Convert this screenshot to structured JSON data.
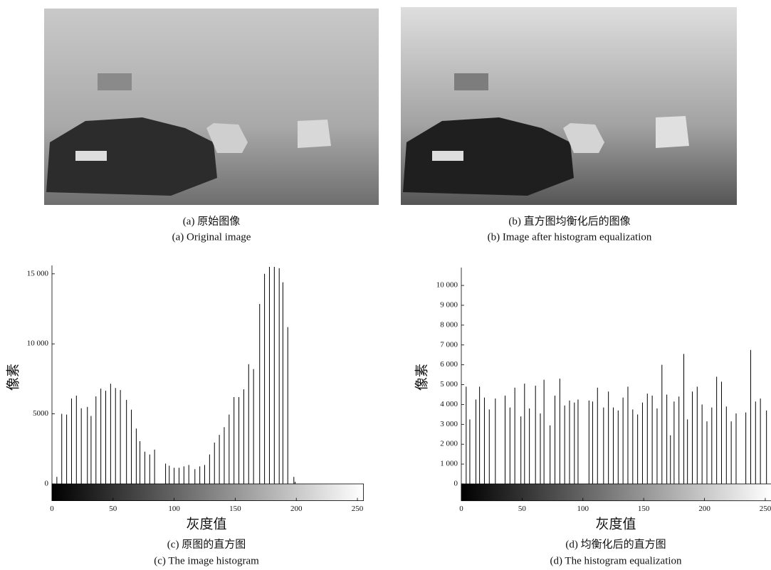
{
  "images": [
    {
      "caption_cn": "(a) 原始图像",
      "caption_en": "(a) Original image"
    },
    {
      "caption_cn": "(b) 直方图均衡化后的图像",
      "caption_en": "(b) Image after histogram equalization"
    }
  ],
  "chart_data": [
    {
      "type": "stem",
      "xlabel": "灰度值",
      "ylabel": "像素",
      "caption_cn": "(c) 原图的直方图",
      "caption_en": "(c) The image histogram",
      "color": "#000000",
      "colorbar": true,
      "x": [
        4,
        8,
        12,
        16,
        20,
        24,
        29,
        32,
        36,
        40,
        44,
        48,
        52,
        56,
        61,
        65,
        69,
        72,
        76,
        80,
        84,
        93,
        96,
        100,
        104,
        108,
        112,
        117,
        121,
        125,
        129,
        133,
        137,
        141,
        145,
        149,
        153,
        157,
        161,
        165,
        170,
        174,
        178,
        182,
        186,
        189,
        193,
        198,
        199
      ],
      "values": [
        500,
        5000,
        4950,
        6100,
        6300,
        5400,
        5500,
        4850,
        6250,
        6800,
        6650,
        7150,
        6850,
        6700,
        6000,
        5300,
        3950,
        3050,
        2300,
        2100,
        2450,
        1450,
        1300,
        1150,
        1150,
        1250,
        1350,
        1050,
        1250,
        1350,
        2100,
        2950,
        3500,
        4050,
        4950,
        6200,
        6200,
        6750,
        8550,
        8200,
        12850,
        15000,
        15500,
        15500,
        15400,
        14400,
        11200,
        500,
        150
      ],
      "xlim": [
        0,
        255
      ],
      "ylim": [
        -1200,
        15600
      ],
      "xticks": [
        0,
        50,
        100,
        150,
        200,
        250
      ],
      "yticks": [
        0,
        5000,
        {
          "value": 10000,
          "label": "10 000"
        },
        {
          "value": 15000,
          "label": "15 000"
        }
      ]
    },
    {
      "type": "stem",
      "xlabel": "灰度值",
      "ylabel": "像素",
      "caption_cn": "(d) 均衡化后的直方图",
      "caption_en": "(d) The histogram equalization",
      "color": "#000000",
      "colorbar": true,
      "x": [
        4,
        7,
        12,
        15,
        19,
        23,
        28,
        36,
        40,
        44,
        49,
        52,
        56,
        61,
        65,
        68,
        73,
        77,
        81,
        85,
        89,
        93,
        96,
        105,
        108,
        112,
        117,
        121,
        125,
        129,
        133,
        137,
        141,
        145,
        149,
        153,
        157,
        161,
        165,
        169,
        172,
        175,
        179,
        183,
        186,
        190,
        194,
        198,
        202,
        206,
        210,
        214,
        218,
        222,
        226,
        234,
        238,
        242,
        246,
        251
      ],
      "values": [
        4900,
        3250,
        4250,
        4900,
        4350,
        3750,
        4300,
        4450,
        3850,
        4850,
        3400,
        5050,
        3800,
        4950,
        3550,
        5250,
        2950,
        4450,
        5300,
        3950,
        4200,
        4100,
        4250,
        4200,
        4150,
        4850,
        3850,
        4650,
        3850,
        3700,
        4350,
        4900,
        3750,
        3500,
        4100,
        4550,
        4450,
        3800,
        6000,
        4500,
        2450,
        4150,
        4400,
        6550,
        3250,
        4650,
        4900,
        4000,
        3150,
        3850,
        5400,
        5150,
        3900,
        3150,
        3550,
        3600,
        6750,
        4150,
        4300,
        3700
      ],
      "xlim": [
        0,
        255
      ],
      "ylim": [
        -850,
        10900
      ],
      "xticks": [
        0,
        50,
        100,
        150,
        200,
        250
      ],
      "yticks": [
        0,
        {
          "value": 1000,
          "label": "1 000"
        },
        {
          "value": 2000,
          "label": "2 000"
        },
        {
          "value": 3000,
          "label": "3 000"
        },
        {
          "value": 4000,
          "label": "4 000"
        },
        {
          "value": 5000,
          "label": "5 000"
        },
        {
          "value": 6000,
          "label": "6 000"
        },
        {
          "value": 7000,
          "label": "7 000"
        },
        {
          "value": 8000,
          "label": "8 000"
        },
        {
          "value": 9000,
          "label": "9 000"
        },
        {
          "value": 10000,
          "label": "10 000"
        }
      ]
    }
  ]
}
